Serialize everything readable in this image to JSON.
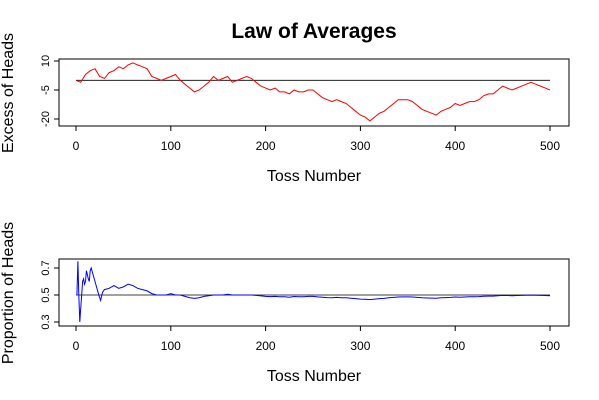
{
  "title": "Law of Averages",
  "chart_data": [
    {
      "type": "line",
      "xlabel": "Toss Number",
      "ylabel": "Excess of Heads",
      "xlim": [
        0,
        500
      ],
      "ylim": [
        -21,
        10
      ],
      "xticks": [
        0,
        100,
        200,
        300,
        400,
        500
      ],
      "yticks": [
        10,
        -5,
        -20
      ],
      "reference_line": 0,
      "grid": false,
      "series_color": "#ff0000",
      "reference_color": "#000000",
      "x": [
        0,
        5,
        10,
        15,
        20,
        25,
        30,
        35,
        40,
        45,
        50,
        55,
        60,
        65,
        70,
        75,
        80,
        85,
        90,
        95,
        100,
        105,
        110,
        115,
        120,
        125,
        130,
        135,
        140,
        145,
        150,
        155,
        160,
        165,
        170,
        175,
        180,
        185,
        190,
        195,
        200,
        205,
        210,
        215,
        220,
        225,
        230,
        235,
        240,
        245,
        250,
        255,
        260,
        265,
        270,
        275,
        280,
        285,
        290,
        295,
        300,
        305,
        310,
        315,
        320,
        325,
        330,
        335,
        340,
        345,
        350,
        355,
        360,
        365,
        370,
        375,
        380,
        385,
        390,
        395,
        400,
        405,
        410,
        415,
        420,
        425,
        430,
        435,
        440,
        445,
        450,
        455,
        460,
        465,
        470,
        475,
        480,
        485,
        490,
        495,
        500
      ],
      "values": [
        0,
        -1,
        3,
        5,
        6,
        2,
        1,
        4,
        5,
        7,
        6,
        8,
        9,
        8,
        7,
        6,
        2,
        1,
        0,
        1,
        2,
        3,
        0,
        -2,
        -4,
        -6,
        -5,
        -3,
        -1,
        2,
        0,
        1,
        2,
        -1,
        0,
        1,
        2,
        1,
        -1,
        -3,
        -4,
        -5,
        -4,
        -6,
        -6,
        -7,
        -5,
        -6,
        -6,
        -5,
        -5,
        -7,
        -9,
        -10,
        -11,
        -10,
        -11,
        -12,
        -14,
        -16,
        -18,
        -19,
        -21,
        -19,
        -17,
        -16,
        -14,
        -12,
        -10,
        -10,
        -10,
        -11,
        -13,
        -15,
        -16,
        -17,
        -18,
        -16,
        -15,
        -14,
        -12,
        -13,
        -12,
        -11,
        -11,
        -10,
        -8,
        -7,
        -7,
        -5,
        -3,
        -4,
        -5,
        -4,
        -3,
        -2,
        -1,
        -2,
        -3,
        -4,
        -5
      ]
    },
    {
      "type": "line",
      "xlabel": "Toss Number",
      "ylabel": "Proportion of Heads",
      "xlim": [
        0,
        500
      ],
      "ylim": [
        0.3,
        0.75
      ],
      "xticks": [
        0,
        100,
        200,
        300,
        400,
        500
      ],
      "yticks": [
        0.3,
        0.5,
        0.7
      ],
      "reference_line": 0.5,
      "grid": false,
      "series_color": "#0000ff",
      "reference_color": "#000000",
      "x": [
        1,
        2,
        3,
        4,
        5,
        6,
        7,
        8,
        9,
        10,
        11,
        12,
        13,
        14,
        15,
        16,
        18,
        20,
        22,
        24,
        26,
        28,
        30,
        35,
        40,
        45,
        50,
        55,
        60,
        65,
        70,
        75,
        80,
        85,
        90,
        95,
        100,
        105,
        110,
        115,
        120,
        125,
        130,
        135,
        140,
        145,
        150,
        155,
        160,
        165,
        170,
        175,
        180,
        185,
        190,
        195,
        200,
        205,
        210,
        215,
        220,
        225,
        230,
        235,
        240,
        245,
        250,
        255,
        260,
        265,
        270,
        275,
        280,
        285,
        290,
        295,
        300,
        305,
        310,
        315,
        320,
        325,
        330,
        335,
        340,
        345,
        350,
        355,
        360,
        365,
        370,
        375,
        380,
        385,
        390,
        395,
        400,
        405,
        410,
        415,
        420,
        425,
        430,
        435,
        440,
        445,
        450,
        455,
        460,
        465,
        470,
        475,
        480,
        485,
        490,
        495,
        500
      ],
      "values": [
        0.5,
        0.75,
        0.5,
        0.3,
        0.4,
        0.5,
        0.6,
        0.62,
        0.58,
        0.6,
        0.68,
        0.65,
        0.62,
        0.6,
        0.68,
        0.7,
        0.65,
        0.6,
        0.55,
        0.5,
        0.46,
        0.52,
        0.54,
        0.55,
        0.57,
        0.55,
        0.56,
        0.58,
        0.57,
        0.55,
        0.54,
        0.53,
        0.51,
        0.5,
        0.5,
        0.5,
        0.51,
        0.5,
        0.5,
        0.49,
        0.48,
        0.475,
        0.48,
        0.49,
        0.495,
        0.5,
        0.5,
        0.5,
        0.505,
        0.5,
        0.5,
        0.5,
        0.5,
        0.5,
        0.497,
        0.493,
        0.49,
        0.488,
        0.49,
        0.487,
        0.487,
        0.484,
        0.489,
        0.487,
        0.487,
        0.49,
        0.49,
        0.486,
        0.483,
        0.481,
        0.48,
        0.482,
        0.48,
        0.479,
        0.476,
        0.473,
        0.47,
        0.469,
        0.466,
        0.47,
        0.473,
        0.475,
        0.479,
        0.482,
        0.485,
        0.486,
        0.486,
        0.485,
        0.482,
        0.479,
        0.478,
        0.477,
        0.476,
        0.479,
        0.481,
        0.482,
        0.485,
        0.484,
        0.485,
        0.487,
        0.487,
        0.488,
        0.491,
        0.492,
        0.492,
        0.494,
        0.497,
        0.496,
        0.495,
        0.496,
        0.497,
        0.498,
        0.499,
        0.498,
        0.497,
        0.496,
        0.495
      ]
    }
  ]
}
